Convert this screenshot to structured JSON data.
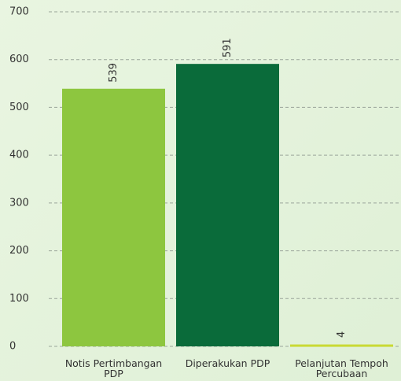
{
  "chart_data": {
    "type": "bar",
    "categories": [
      "Notis Pertimbangan PDP",
      "Diperakukan PDP",
      "Pelanjutan Tempoh Percubaan"
    ],
    "values": [
      539,
      591,
      4
    ],
    "colors": [
      "#8dc63f",
      "#0a6b3a",
      "#c9d934"
    ],
    "ylim": [
      0,
      700
    ],
    "yticks": [
      0,
      100,
      200,
      300,
      400,
      500,
      600,
      700
    ],
    "grid": true
  }
}
